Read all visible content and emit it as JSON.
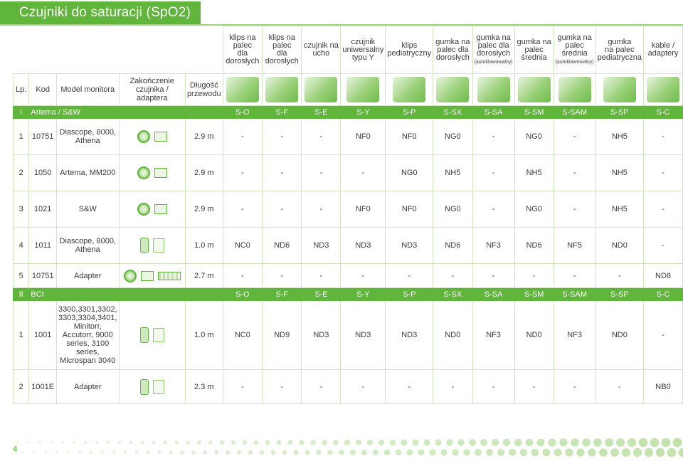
{
  "title": "Czujniki do saturacji (SpO2)",
  "page_number": "4",
  "header": {
    "lp": "Lp.",
    "kod": "Kod",
    "model": "Model monitora",
    "zakonczenie": "Zakończenie czujnika / adaptera",
    "dlugosc": "Długość przewodu",
    "sensors": [
      {
        "l1": "klips na palec",
        "l2": "dla dorosłych",
        "sub": ""
      },
      {
        "l1": "klips na palec",
        "l2": "dla dorosłych",
        "sub": ""
      },
      {
        "l1": "czujnik na",
        "l2": "ucho",
        "sub": ""
      },
      {
        "l1": "czujnik uniwersalny",
        "l2": "typu Y",
        "sub": ""
      },
      {
        "l1": "klips",
        "l2": "pediatryczny",
        "sub": ""
      },
      {
        "l1": "gumka na palec dla",
        "l2": "dorosłych",
        "sub": ""
      },
      {
        "l1": "gumka na palec dla",
        "l2": "dorosłych",
        "sub": "(autoklawowalny)"
      },
      {
        "l1": "gumka na",
        "l2": "palec średnia",
        "sub": ""
      },
      {
        "l1": "gumka na",
        "l2": "palec średnia",
        "sub": "(autoklawowalny)"
      },
      {
        "l1": "gumka",
        "l2": "na palec pediatryczna",
        "sub": ""
      },
      {
        "l1": "kable /",
        "l2": "adaptery",
        "sub": ""
      }
    ]
  },
  "sections": [
    {
      "num": "I",
      "name": "Artema / S&W",
      "codes": [
        "S-O",
        "S-F",
        "S-E",
        "S-Y",
        "S-P",
        "S-SX",
        "S-SA",
        "S-SM",
        "S-SAM",
        "S-SP",
        "S-C"
      ],
      "rows": [
        {
          "lp": "1",
          "kod": "10751",
          "model": "Diascope, 8000, Athena",
          "icons": "round-rect",
          "len": "2.9 m",
          "vals": [
            "-",
            "-",
            "-",
            "NF0",
            "NF0",
            "NG0",
            "-",
            "NG0",
            "-",
            "NH5",
            "-"
          ]
        },
        {
          "lp": "2",
          "kod": "1050",
          "model": "Artema, MM200",
          "icons": "round-rect",
          "len": "2.9 m",
          "vals": [
            "-",
            "-",
            "-",
            "-",
            "NG0",
            "NH5",
            "-",
            "NH5",
            "-",
            "NH5",
            "-"
          ]
        },
        {
          "lp": "3",
          "kod": "1021",
          "model": "S&W",
          "icons": "round-rect",
          "len": "2.9 m",
          "vals": [
            "-",
            "-",
            "-",
            "NF0",
            "NF0",
            "NG0",
            "-",
            "NG0",
            "-",
            "NH5",
            "-"
          ]
        },
        {
          "lp": "4",
          "kod": "1011",
          "model": "Diascope, 8000, Athena",
          "icons": "tall-side",
          "len": "1.0 m",
          "vals": [
            "NC0",
            "ND6",
            "ND3",
            "ND3",
            "ND3",
            "ND6",
            "NF3",
            "ND6",
            "NF5",
            "ND0",
            "-"
          ]
        },
        {
          "lp": "5",
          "kod": "10751",
          "model": "Adapter",
          "icons": "round-rect-long",
          "len": "2.7 m",
          "vals": [
            "-",
            "-",
            "-",
            "-",
            "-",
            "-",
            "-",
            "-",
            "-",
            "-",
            "ND8"
          ]
        }
      ]
    },
    {
      "num": "II",
      "name": "BCI",
      "codes": [
        "S-O",
        "S-F",
        "S-E",
        "S-Y",
        "S-P",
        "S-SX",
        "S-SA",
        "S-SM",
        "S-SAM",
        "S-SP",
        "S-C"
      ],
      "rows": [
        {
          "lp": "1",
          "kod": "1001",
          "model": "3300,3301,3302, 3303,3304,3401, Minitorr, Accutorr, 9000 series, 3100 series, Microspan 3040",
          "icons": "tall-side",
          "len": "1.0 m",
          "vals": [
            "NC0",
            "ND9",
            "ND3",
            "ND3",
            "ND3",
            "ND0",
            "NF3",
            "ND0",
            "NF3",
            "ND0",
            "-"
          ]
        },
        {
          "lp": "2",
          "kod": "1001E",
          "model": "Adapter",
          "icons": "tall-side",
          "len": "2.3 m",
          "vals": [
            "-",
            "-",
            "-",
            "-",
            "-",
            "-",
            "-",
            "-",
            "-",
            "-",
            "NB0"
          ]
        }
      ]
    }
  ],
  "colors": {
    "accent": "#5fb63a",
    "grid": "#cfe6c1",
    "label": "#58a83a"
  }
}
